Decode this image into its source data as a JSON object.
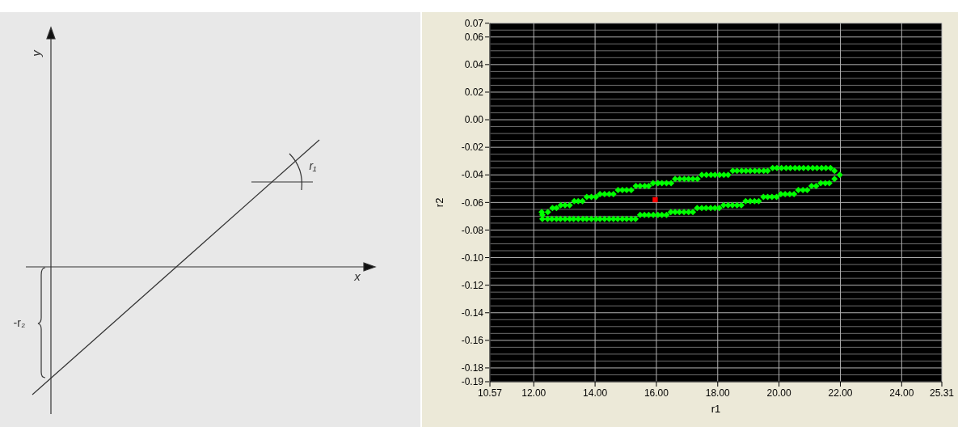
{
  "chart_data": [
    {
      "type": "other",
      "annotations": [
        "y",
        "x",
        "r₁",
        "-r₂"
      ]
    },
    {
      "type": "scatter",
      "xlabel": "r1",
      "ylabel": "r2",
      "grid": true,
      "xlim": [
        10.57,
        25.31
      ],
      "ylim": [
        -0.19,
        0.07
      ],
      "xticks": [
        {
          "value": 10.57,
          "label": "10.57"
        },
        {
          "value": 12,
          "label": "12.00"
        },
        {
          "value": 14,
          "label": "14.00"
        },
        {
          "value": 16,
          "label": "16.00"
        },
        {
          "value": 18,
          "label": "18.00"
        },
        {
          "value": 20,
          "label": "20.00"
        },
        {
          "value": 22,
          "label": "22.00"
        },
        {
          "value": 24,
          "label": "24.00"
        },
        {
          "value": 25.31,
          "label": "25.31"
        }
      ],
      "yticks": [
        {
          "value": 0.07,
          "label": "0.07"
        },
        {
          "value": 0.065,
          "label": null
        },
        {
          "value": 0.06,
          "label": "0.06"
        },
        {
          "value": 0.055,
          "label": null
        },
        {
          "value": 0.05,
          "label": null
        },
        {
          "value": 0.045,
          "label": null
        },
        {
          "value": 0.04,
          "label": "0.04"
        },
        {
          "value": 0.035,
          "label": null
        },
        {
          "value": 0.03,
          "label": null
        },
        {
          "value": 0.025,
          "label": null
        },
        {
          "value": 0.02,
          "label": "0.02"
        },
        {
          "value": 0.015,
          "label": null
        },
        {
          "value": 0.01,
          "label": null
        },
        {
          "value": 0.005,
          "label": null
        },
        {
          "value": 0,
          "label": "0.00"
        },
        {
          "value": -0.005,
          "label": null
        },
        {
          "value": -0.01,
          "label": null
        },
        {
          "value": -0.015,
          "label": null
        },
        {
          "value": -0.02,
          "label": "-0.02"
        },
        {
          "value": -0.025,
          "label": null
        },
        {
          "value": -0.03,
          "label": null
        },
        {
          "value": -0.035,
          "label": null
        },
        {
          "value": -0.04,
          "label": "-0.04"
        },
        {
          "value": -0.045,
          "label": null
        },
        {
          "value": -0.05,
          "label": null
        },
        {
          "value": -0.055,
          "label": null
        },
        {
          "value": -0.06,
          "label": "-0.06"
        },
        {
          "value": -0.065,
          "label": null
        },
        {
          "value": -0.07,
          "label": null
        },
        {
          "value": -0.075,
          "label": null
        },
        {
          "value": -0.08,
          "label": "-0.08"
        },
        {
          "value": -0.085,
          "label": null
        },
        {
          "value": -0.09,
          "label": null
        },
        {
          "value": -0.095,
          "label": null
        },
        {
          "value": -0.1,
          "label": "-0.10"
        },
        {
          "value": -0.105,
          "label": null
        },
        {
          "value": -0.11,
          "label": null
        },
        {
          "value": -0.115,
          "label": null
        },
        {
          "value": -0.12,
          "label": "-0.12"
        },
        {
          "value": -0.125,
          "label": null
        },
        {
          "value": -0.13,
          "label": null
        },
        {
          "value": -0.135,
          "label": null
        },
        {
          "value": -0.14,
          "label": "-0.14"
        },
        {
          "value": -0.145,
          "label": null
        },
        {
          "value": -0.15,
          "label": null
        },
        {
          "value": -0.155,
          "label": null
        },
        {
          "value": -0.16,
          "label": "-0.16"
        },
        {
          "value": -0.165,
          "label": null
        },
        {
          "value": -0.17,
          "label": null
        },
        {
          "value": -0.175,
          "label": null
        },
        {
          "value": -0.18,
          "label": "-0.18"
        },
        {
          "value": -0.185,
          "label": null
        },
        {
          "value": -0.19,
          "label": "-0.19"
        }
      ],
      "series": [
        {
          "color": "#00ff00",
          "marker": "diamond",
          "x": [
            12.26,
            12.46,
            12.61,
            12.74,
            12.88,
            13.02,
            13.17,
            13.32,
            13.45,
            13.59,
            13.73,
            13.88,
            14.03,
            14.16,
            14.31,
            14.46,
            14.6,
            14.75,
            14.89,
            15.03,
            15.18,
            15.33,
            15.47,
            15.62,
            15.75,
            15.89,
            16.05,
            16.18,
            16.33,
            16.48,
            16.61,
            16.76,
            16.91,
            17.05,
            17.19,
            17.34,
            17.48,
            17.63,
            17.78,
            17.91,
            18.06,
            18.2,
            18.34,
            18.49,
            18.63,
            18.78,
            18.92,
            19.06,
            19.21,
            19.35,
            19.5,
            19.63,
            19.79,
            19.93,
            20.08,
            20.23,
            20.37,
            20.52,
            20.66,
            20.8,
            20.95,
            21.1,
            21.24,
            21.39,
            21.53,
            21.68,
            21.81,
            21.98,
            21.81,
            21.64,
            21.51,
            21.36,
            21.21,
            21.06,
            20.92,
            20.78,
            20.63,
            20.49,
            20.35,
            20.2,
            20.06,
            19.92,
            19.77,
            19.63,
            19.49,
            19.34,
            19.2,
            19.06,
            18.91,
            18.77,
            18.63,
            18.48,
            18.34,
            18.19,
            18.05,
            17.91,
            17.77,
            17.62,
            17.48,
            17.33,
            17.19,
            17.05,
            16.9,
            16.75,
            16.61,
            16.47,
            16.33,
            16.18,
            16.05,
            15.9,
            15.75,
            15.61,
            15.47,
            15.32,
            15.18,
            15.03,
            14.89,
            14.74,
            14.6,
            14.46,
            14.31,
            14.16,
            14.03,
            13.88,
            13.73,
            13.6,
            13.45,
            13.3,
            13.17,
            13.02,
            12.87,
            12.74,
            12.59,
            12.45,
            12.28,
            12.28
          ],
          "values": [
            -0.067,
            -0.067,
            -0.064,
            -0.064,
            -0.062,
            -0.062,
            -0.062,
            -0.059,
            -0.059,
            -0.059,
            -0.056,
            -0.056,
            -0.056,
            -0.054,
            -0.054,
            -0.054,
            -0.054,
            -0.051,
            -0.051,
            -0.051,
            -0.051,
            -0.048,
            -0.048,
            -0.048,
            -0.048,
            -0.046,
            -0.046,
            -0.046,
            -0.046,
            -0.046,
            -0.043,
            -0.043,
            -0.043,
            -0.043,
            -0.043,
            -0.043,
            -0.04,
            -0.04,
            -0.04,
            -0.04,
            -0.04,
            -0.04,
            -0.04,
            -0.037,
            -0.037,
            -0.037,
            -0.037,
            -0.037,
            -0.037,
            -0.037,
            -0.037,
            -0.037,
            -0.035,
            -0.035,
            -0.035,
            -0.035,
            -0.035,
            -0.035,
            -0.035,
            -0.035,
            -0.035,
            -0.035,
            -0.035,
            -0.035,
            -0.035,
            -0.035,
            -0.037,
            -0.04,
            -0.043,
            -0.046,
            -0.046,
            -0.046,
            -0.048,
            -0.048,
            -0.051,
            -0.051,
            -0.051,
            -0.054,
            -0.054,
            -0.054,
            -0.054,
            -0.056,
            -0.056,
            -0.056,
            -0.056,
            -0.059,
            -0.059,
            -0.059,
            -0.059,
            -0.062,
            -0.062,
            -0.062,
            -0.062,
            -0.062,
            -0.064,
            -0.064,
            -0.064,
            -0.064,
            -0.064,
            -0.064,
            -0.067,
            -0.067,
            -0.067,
            -0.067,
            -0.067,
            -0.067,
            -0.069,
            -0.069,
            -0.069,
            -0.069,
            -0.069,
            -0.069,
            -0.069,
            -0.072,
            -0.072,
            -0.072,
            -0.072,
            -0.072,
            -0.072,
            -0.072,
            -0.072,
            -0.072,
            -0.072,
            -0.072,
            -0.072,
            -0.072,
            -0.072,
            -0.072,
            -0.072,
            -0.072,
            -0.072,
            -0.072,
            -0.072,
            -0.072,
            -0.072,
            -0.069
          ]
        },
        {
          "color": "#ff0000",
          "marker": "square",
          "x": [
            15.96
          ],
          "values": [
            -0.058
          ]
        }
      ]
    }
  ]
}
